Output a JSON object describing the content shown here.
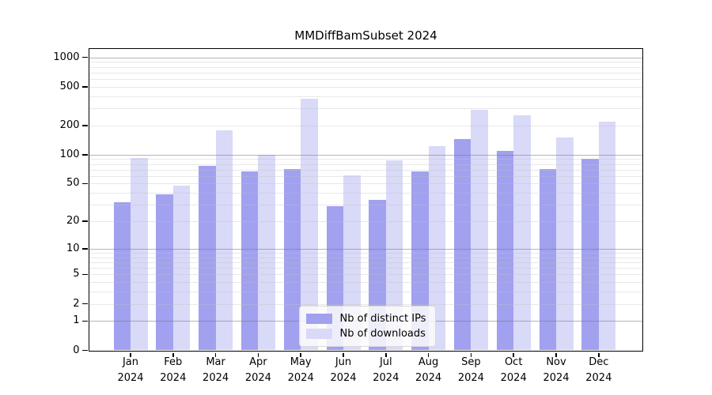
{
  "chart_data": {
    "type": "bar",
    "title": "MMDiffBamSubset 2024",
    "categories": [
      "Jan 2024",
      "Feb 2024",
      "Mar 2024",
      "Apr 2024",
      "May 2024",
      "Jun 2024",
      "Jul 2024",
      "Aug 2024",
      "Sep 2024",
      "Oct 2024",
      "Nov 2024",
      "Dec 2024"
    ],
    "series": [
      {
        "name": "Nb of distinct IPs",
        "color": "#a1a1f0",
        "values": [
          32,
          39,
          76,
          67,
          71,
          29,
          34,
          67,
          145,
          110,
          71,
          90
        ]
      },
      {
        "name": "Nb of downloads",
        "color": "#d9d9f8",
        "values": [
          92,
          48,
          178,
          100,
          380,
          61,
          87,
          122,
          290,
          255,
          150,
          220
        ]
      }
    ],
    "xlabel": "",
    "ylabel": "",
    "yscale": "log1p",
    "ylim": [
      0,
      1233
    ],
    "ytick_values": [
      0,
      1,
      2,
      5,
      10,
      20,
      50,
      100,
      200,
      500,
      1000
    ],
    "major_gridlines": [
      1,
      10,
      100,
      1000
    ],
    "minor_gridlines": [
      2,
      3,
      4,
      5,
      6,
      7,
      8,
      9,
      20,
      30,
      40,
      50,
      60,
      70,
      80,
      90,
      200,
      300,
      400,
      500,
      600,
      700,
      800,
      900
    ],
    "grid": true,
    "legend_position": "lower center"
  }
}
